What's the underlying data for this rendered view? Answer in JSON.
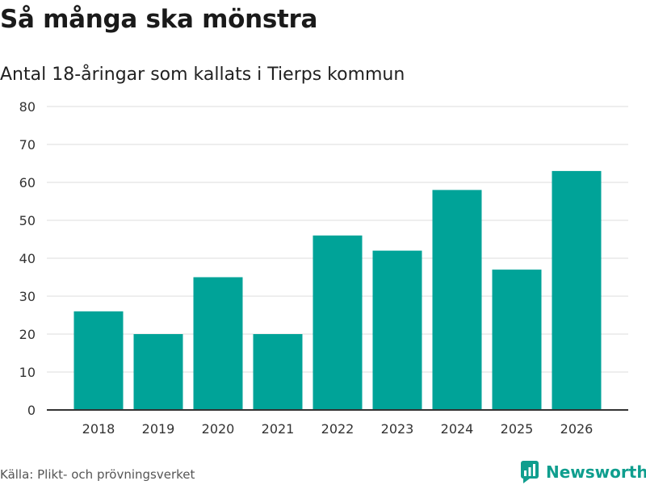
{
  "header": {
    "title": "Så många ska mönstra",
    "subtitle": "Antal 18-åringar som kallats i Tierps kommun"
  },
  "footer": {
    "source": "Källa: Plikt- och prövningsverket",
    "brand": "Newsworthy"
  },
  "colors": {
    "bar": "#00a398",
    "grid": "#dcdcdc",
    "axis": "#333333",
    "brand": "#0f9e8e"
  },
  "chart_data": {
    "type": "bar",
    "title": "Så många ska mönstra",
    "subtitle": "Antal 18-åringar som kallats i Tierps kommun",
    "xlabel": "",
    "ylabel": "",
    "categories": [
      "2018",
      "2019",
      "2020",
      "2021",
      "2022",
      "2023",
      "2024",
      "2025",
      "2026"
    ],
    "values": [
      26,
      20,
      35,
      20,
      46,
      42,
      58,
      37,
      63
    ],
    "ylim": [
      0,
      80
    ],
    "yticks": [
      0,
      10,
      20,
      30,
      40,
      50,
      60,
      70,
      80
    ],
    "grid": true,
    "legend": "none"
  }
}
